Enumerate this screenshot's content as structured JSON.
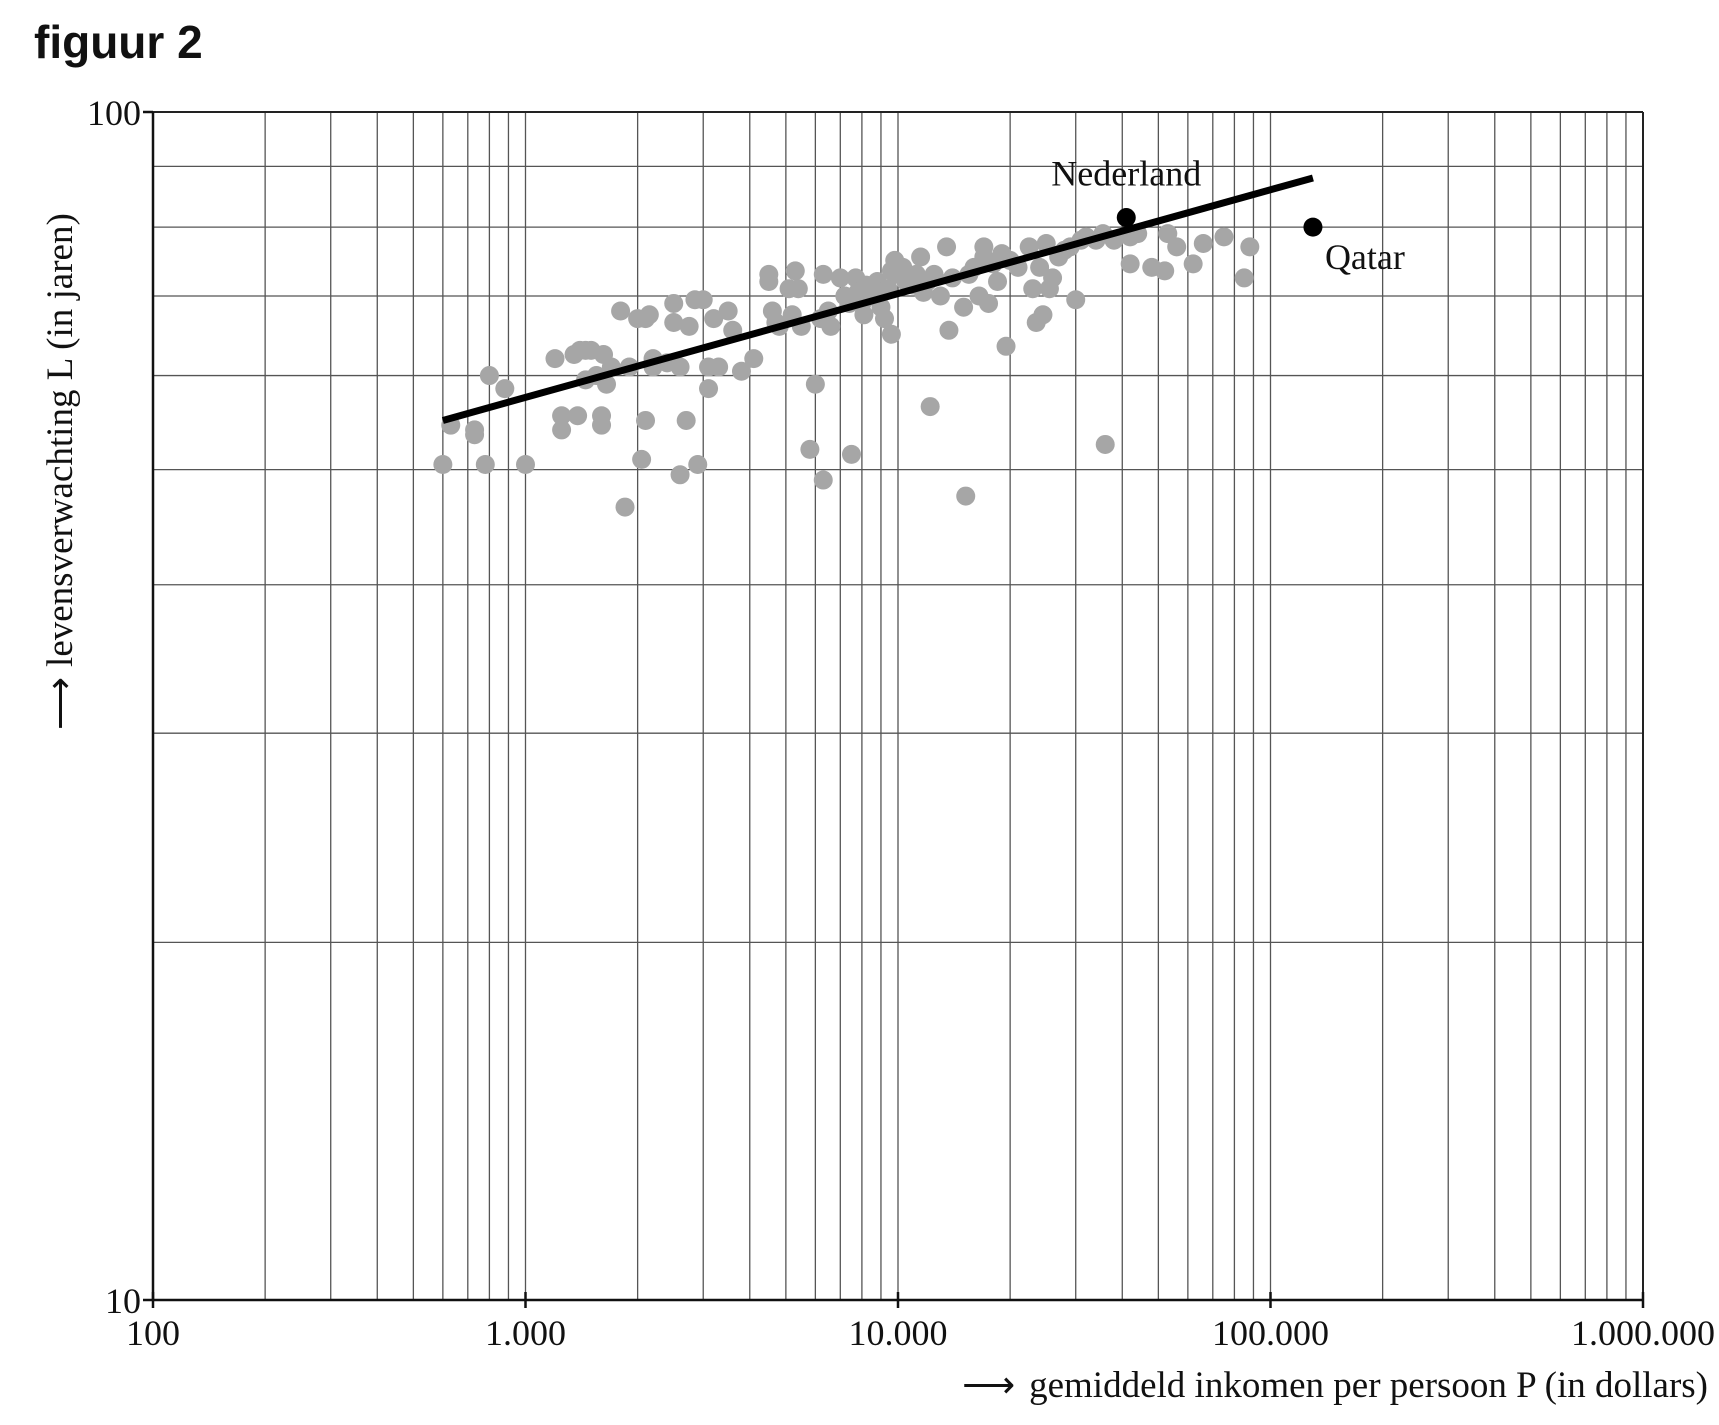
{
  "figure_label": "figuur 2",
  "chart_data": {
    "type": "scatter",
    "xscale": "log",
    "yscale": "log",
    "xlim": [
      100,
      1000000
    ],
    "ylim": [
      10,
      100
    ],
    "xlabel_arrow": "⟶",
    "xlabel": "gemiddeld inkomen per persoon P (in dollars)",
    "ylabel_arrow": "⟶",
    "ylabel": "levensverwachting L (in jaren)",
    "xticks": [
      {
        "value": 100,
        "label": "100"
      },
      {
        "value": 1000,
        "label": "1.000"
      },
      {
        "value": 10000,
        "label": "10.000"
      },
      {
        "value": 100000,
        "label": "100.000"
      },
      {
        "value": 1000000,
        "label": "1.000.000"
      }
    ],
    "yticks": [
      {
        "value": 10,
        "label": "10"
      },
      {
        "value": 100,
        "label": "100"
      }
    ],
    "ygrid": [
      20,
      30,
      40,
      50,
      60,
      70,
      80,
      90
    ],
    "grid": true,
    "colors": {
      "points": "#a6a6a6",
      "highlight": "#000000",
      "trend": "#000000"
    },
    "trend_line": {
      "x": [
        600,
        130000
      ],
      "y": [
        55,
        88
      ]
    },
    "points": [
      {
        "x": 600,
        "y": 50.5
      },
      {
        "x": 630,
        "y": 54.5
      },
      {
        "x": 730,
        "y": 54
      },
      {
        "x": 730,
        "y": 53.5
      },
      {
        "x": 780,
        "y": 50.5
      },
      {
        "x": 800,
        "y": 60
      },
      {
        "x": 880,
        "y": 58.5
      },
      {
        "x": 1000,
        "y": 50.5
      },
      {
        "x": 1200,
        "y": 62
      },
      {
        "x": 1250,
        "y": 55.5
      },
      {
        "x": 1250,
        "y": 54
      },
      {
        "x": 1350,
        "y": 62.5
      },
      {
        "x": 1380,
        "y": 55.5
      },
      {
        "x": 1400,
        "y": 63
      },
      {
        "x": 1450,
        "y": 63
      },
      {
        "x": 1450,
        "y": 59.5
      },
      {
        "x": 1500,
        "y": 63
      },
      {
        "x": 1550,
        "y": 60
      },
      {
        "x": 1600,
        "y": 55.5
      },
      {
        "x": 1600,
        "y": 54.5
      },
      {
        "x": 1620,
        "y": 62.5
      },
      {
        "x": 1650,
        "y": 59
      },
      {
        "x": 1700,
        "y": 61
      },
      {
        "x": 1800,
        "y": 68
      },
      {
        "x": 1850,
        "y": 46.5
      },
      {
        "x": 1900,
        "y": 61
      },
      {
        "x": 2000,
        "y": 67
      },
      {
        "x": 2050,
        "y": 51
      },
      {
        "x": 2100,
        "y": 67
      },
      {
        "x": 2100,
        "y": 55
      },
      {
        "x": 2150,
        "y": 67.5
      },
      {
        "x": 2200,
        "y": 62
      },
      {
        "x": 2200,
        "y": 61
      },
      {
        "x": 2400,
        "y": 61.5
      },
      {
        "x": 2500,
        "y": 66.5
      },
      {
        "x": 2500,
        "y": 69
      },
      {
        "x": 2600,
        "y": 61
      },
      {
        "x": 2600,
        "y": 49.5
      },
      {
        "x": 2700,
        "y": 55
      },
      {
        "x": 2750,
        "y": 66
      },
      {
        "x": 2850,
        "y": 69.5
      },
      {
        "x": 2900,
        "y": 50.5
      },
      {
        "x": 3000,
        "y": 69.5
      },
      {
        "x": 3100,
        "y": 58.5
      },
      {
        "x": 3100,
        "y": 61
      },
      {
        "x": 3200,
        "y": 67
      },
      {
        "x": 3300,
        "y": 61
      },
      {
        "x": 3500,
        "y": 68
      },
      {
        "x": 3600,
        "y": 65.5
      },
      {
        "x": 3800,
        "y": 60.5
      },
      {
        "x": 4100,
        "y": 62
      },
      {
        "x": 4500,
        "y": 73
      },
      {
        "x": 4500,
        "y": 72
      },
      {
        "x": 4600,
        "y": 68
      },
      {
        "x": 4700,
        "y": 66.5
      },
      {
        "x": 4800,
        "y": 66
      },
      {
        "x": 5100,
        "y": 71
      },
      {
        "x": 5200,
        "y": 67.5
      },
      {
        "x": 5300,
        "y": 73.5
      },
      {
        "x": 5400,
        "y": 71
      },
      {
        "x": 5500,
        "y": 66
      },
      {
        "x": 5800,
        "y": 52
      },
      {
        "x": 6000,
        "y": 59
      },
      {
        "x": 6200,
        "y": 67
      },
      {
        "x": 6300,
        "y": 73
      },
      {
        "x": 6300,
        "y": 49
      },
      {
        "x": 6500,
        "y": 68
      },
      {
        "x": 6600,
        "y": 66
      },
      {
        "x": 7000,
        "y": 72.5
      },
      {
        "x": 7200,
        "y": 70
      },
      {
        "x": 7400,
        "y": 69
      },
      {
        "x": 7500,
        "y": 51.5
      },
      {
        "x": 7700,
        "y": 72.5
      },
      {
        "x": 7800,
        "y": 70.5
      },
      {
        "x": 8000,
        "y": 69
      },
      {
        "x": 8100,
        "y": 67.5
      },
      {
        "x": 8200,
        "y": 71.5
      },
      {
        "x": 8500,
        "y": 70
      },
      {
        "x": 8800,
        "y": 72
      },
      {
        "x": 9000,
        "y": 68.5
      },
      {
        "x": 9200,
        "y": 67
      },
      {
        "x": 9400,
        "y": 71
      },
      {
        "x": 9600,
        "y": 73.5
      },
      {
        "x": 9600,
        "y": 65
      },
      {
        "x": 9800,
        "y": 75
      },
      {
        "x": 10000,
        "y": 73
      },
      {
        "x": 10300,
        "y": 74
      },
      {
        "x": 10500,
        "y": 72
      },
      {
        "x": 11000,
        "y": 71.5
      },
      {
        "x": 11200,
        "y": 73
      },
      {
        "x": 11500,
        "y": 75.5
      },
      {
        "x": 11700,
        "y": 70.5
      },
      {
        "x": 12000,
        "y": 72
      },
      {
        "x": 12200,
        "y": 56.5
      },
      {
        "x": 12500,
        "y": 73
      },
      {
        "x": 13000,
        "y": 70
      },
      {
        "x": 13500,
        "y": 77
      },
      {
        "x": 13700,
        "y": 65.5
      },
      {
        "x": 14000,
        "y": 72.5
      },
      {
        "x": 15000,
        "y": 68.5
      },
      {
        "x": 15200,
        "y": 47.5
      },
      {
        "x": 15500,
        "y": 73
      },
      {
        "x": 16000,
        "y": 74
      },
      {
        "x": 16500,
        "y": 70
      },
      {
        "x": 17000,
        "y": 75.5
      },
      {
        "x": 17000,
        "y": 77
      },
      {
        "x": 17500,
        "y": 69
      },
      {
        "x": 18000,
        "y": 74.5
      },
      {
        "x": 18500,
        "y": 72
      },
      {
        "x": 19000,
        "y": 76
      },
      {
        "x": 19500,
        "y": 63.5
      },
      {
        "x": 20000,
        "y": 75
      },
      {
        "x": 21000,
        "y": 74
      },
      {
        "x": 22500,
        "y": 77
      },
      {
        "x": 23000,
        "y": 71
      },
      {
        "x": 23500,
        "y": 66.5
      },
      {
        "x": 24000,
        "y": 74
      },
      {
        "x": 24500,
        "y": 67.5
      },
      {
        "x": 25000,
        "y": 77.5
      },
      {
        "x": 25500,
        "y": 71
      },
      {
        "x": 26000,
        "y": 72.5
      },
      {
        "x": 27000,
        "y": 75.5
      },
      {
        "x": 28000,
        "y": 76.5
      },
      {
        "x": 29000,
        "y": 77
      },
      {
        "x": 30000,
        "y": 69.5
      },
      {
        "x": 31000,
        "y": 78
      },
      {
        "x": 32000,
        "y": 78.5
      },
      {
        "x": 34000,
        "y": 78
      },
      {
        "x": 35500,
        "y": 79
      },
      {
        "x": 36000,
        "y": 52.5
      },
      {
        "x": 38000,
        "y": 78
      },
      {
        "x": 42000,
        "y": 78.5
      },
      {
        "x": 42000,
        "y": 74.5
      },
      {
        "x": 44000,
        "y": 79
      },
      {
        "x": 48000,
        "y": 74
      },
      {
        "x": 52000,
        "y": 73.5
      },
      {
        "x": 53000,
        "y": 79
      },
      {
        "x": 56000,
        "y": 77
      },
      {
        "x": 62000,
        "y": 74.5
      },
      {
        "x": 66000,
        "y": 77.5
      },
      {
        "x": 75000,
        "y": 78.5
      },
      {
        "x": 85000,
        "y": 72.5
      },
      {
        "x": 88000,
        "y": 77
      }
    ],
    "highlighted": [
      {
        "name": "Nederland",
        "x": 41000,
        "y": 81.5,
        "label_position": "above"
      },
      {
        "name": "Qatar",
        "x": 130000,
        "y": 80,
        "label_position": "below-right"
      }
    ]
  }
}
